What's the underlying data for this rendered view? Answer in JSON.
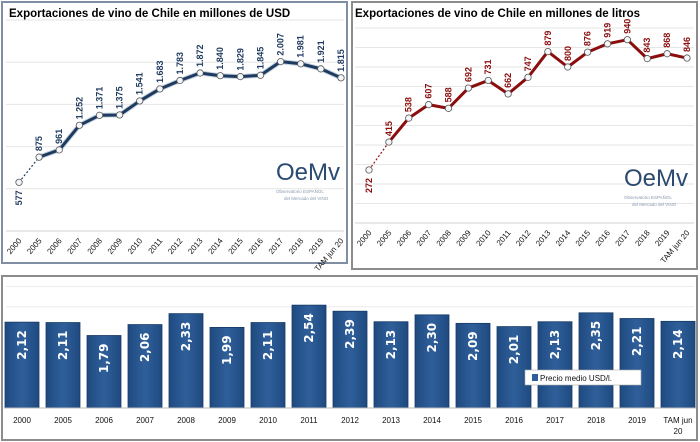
{
  "chart_data": [
    {
      "type": "line",
      "title": "Exportaciones de vino de Chile en millones de USD",
      "categories": [
        "2000",
        "2005",
        "2006",
        "2007",
        "2008",
        "2009",
        "2010",
        "2011",
        "2012",
        "2013",
        "2014",
        "2015",
        "2016",
        "2017",
        "2018",
        "2019",
        "TAM jun 20"
      ],
      "values": [
        577,
        875,
        961,
        1252,
        1371,
        1375,
        1541,
        1683,
        1783,
        1872,
        1840,
        1829,
        1845,
        2007,
        1981,
        1921,
        1815
      ],
      "data_labels": [
        "577",
        "875",
        "961",
        "1.252",
        "1.371",
        "1.375",
        "1.541",
        "1.683",
        "1.783",
        "1.872",
        "1.840",
        "1.829",
        "1.845",
        "2.007",
        "1.981",
        "1.921",
        "1.815"
      ],
      "ylim": [
        0,
        2500
      ],
      "grid": true,
      "first_segment_dashed": true,
      "colors": {
        "line": "#1f3a5f",
        "title": "#1f497d",
        "labels": "#1f3a5f"
      }
    },
    {
      "type": "line",
      "title": "Exportaciones de vino de Chile en millones de litros",
      "categories": [
        "2000",
        "2005",
        "2006",
        "2007",
        "2008",
        "2009",
        "2010",
        "2011",
        "2012",
        "2013",
        "2014",
        "2015",
        "2016",
        "2017",
        "2018",
        "2019",
        "TAM jun 20"
      ],
      "values": [
        272,
        415,
        538,
        607,
        588,
        692,
        731,
        662,
        747,
        879,
        800,
        876,
        919,
        940,
        843,
        868,
        846
      ],
      "data_labels": [
        "272",
        "415",
        "538",
        "607",
        "588",
        "692",
        "731",
        "662",
        "747",
        "879",
        "800",
        "876",
        "919",
        "940",
        "843",
        "868",
        "846"
      ],
      "ylim": [
        0,
        1000
      ],
      "grid": true,
      "first_segment_dashed": true,
      "colors": {
        "line": "#8b0d0d",
        "title": "#8b1a1a",
        "labels": "#8b0d0d"
      }
    },
    {
      "type": "bar",
      "categories": [
        "2000",
        "2005",
        "2006",
        "2007",
        "2008",
        "2009",
        "2010",
        "2011",
        "2012",
        "2013",
        "2014",
        "2015",
        "2016",
        "2017",
        "2018",
        "2019",
        "TAM jun 20"
      ],
      "values": [
        2.12,
        2.11,
        1.79,
        2.06,
        2.33,
        1.99,
        2.11,
        2.54,
        2.39,
        2.13,
        2.3,
        2.09,
        2.01,
        2.13,
        2.35,
        2.21,
        2.14
      ],
      "data_labels": [
        "2,12",
        "2,11",
        "1,79",
        "2,06",
        "2,33",
        "1,99",
        "2,11",
        "2,54",
        "2,39",
        "2,13",
        "2,30",
        "2,09",
        "2,01",
        "2,13",
        "2,35",
        "2,21",
        "2,14"
      ],
      "series": [
        {
          "name": "Precio medio USD/l."
        }
      ],
      "legend_position": "right",
      "ylim": [
        0,
        3.2
      ],
      "grid": true,
      "colors": {
        "bar": "#2f5f9a"
      }
    }
  ],
  "logo": {
    "mark": "OeMv",
    "line1": "Observatorio ESPAÑOL",
    "line2": "del Mercado del VINO"
  }
}
